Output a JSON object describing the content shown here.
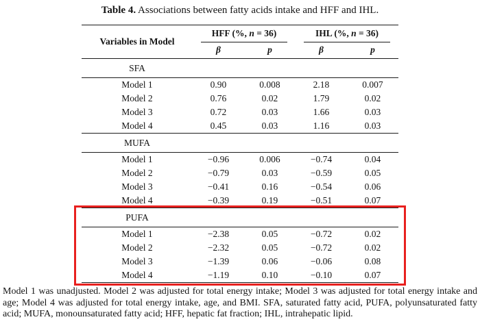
{
  "title": {
    "label": "Table 4.",
    "text": "Associations between fatty acids intake and HFF and IHL."
  },
  "table": {
    "variables_header": "Variables in Model",
    "groups": [
      {
        "pre": "HFF (%, ",
        "n": "n",
        "post": " = 36)"
      },
      {
        "pre": "IHL (%, ",
        "n": "n",
        "post": " = 36)"
      }
    ],
    "subheaders": [
      "β",
      "p",
      "β",
      "p"
    ],
    "sections": [
      {
        "name": "SFA",
        "highlight": false,
        "rows": [
          {
            "label": "Model 1",
            "values": [
              "0.90",
              "0.008",
              "2.18",
              "0.007"
            ]
          },
          {
            "label": "Model 2",
            "values": [
              "0.76",
              "0.02",
              "1.79",
              "0.02"
            ]
          },
          {
            "label": "Model 3",
            "values": [
              "0.72",
              "0.03",
              "1.66",
              "0.03"
            ]
          },
          {
            "label": "Model 4",
            "values": [
              "0.45",
              "0.03",
              "1.16",
              "0.03"
            ]
          }
        ]
      },
      {
        "name": "MUFA",
        "highlight": false,
        "rows": [
          {
            "label": "Model 1",
            "values": [
              "−0.96",
              "0.006",
              "−0.74",
              "0.04"
            ]
          },
          {
            "label": "Model 2",
            "values": [
              "−0.79",
              "0.03",
              "−0.59",
              "0.05"
            ]
          },
          {
            "label": "Model 3",
            "values": [
              "−0.41",
              "0.16",
              "−0.54",
              "0.06"
            ]
          },
          {
            "label": "Model 4",
            "values": [
              "−0.39",
              "0.19",
              "−0.51",
              "0.07"
            ]
          }
        ]
      },
      {
        "name": "PUFA",
        "highlight": true,
        "rows": [
          {
            "label": "Model 1",
            "values": [
              "−2.38",
              "0.05",
              "−0.72",
              "0.02"
            ]
          },
          {
            "label": "Model 2",
            "values": [
              "−2.32",
              "0.05",
              "−0.72",
              "0.02"
            ]
          },
          {
            "label": "Model 3",
            "values": [
              "−1.39",
              "0.06",
              "−0.06",
              "0.08"
            ]
          },
          {
            "label": "Model 4",
            "values": [
              "−1.19",
              "0.10",
              "−0.10",
              "0.07"
            ]
          }
        ]
      }
    ]
  },
  "colors": {
    "highlight_box": "#e8201e"
  },
  "footnote": "Model 1 was unadjusted. Model 2 was adjusted for total energy intake; Model 3 was adjusted for total energy intake and age; Model 4 was adjusted for total energy intake, age, and BMI. SFA, saturated fatty acid, PUFA, polyunsaturated fatty acid; MUFA, monounsaturated fatty acid; HFF, hepatic fat fraction; IHL, intrahepatic lipid."
}
